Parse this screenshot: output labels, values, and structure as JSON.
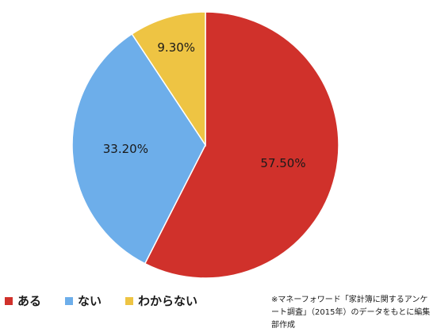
{
  "chart_data": {
    "type": "pie",
    "title": "",
    "slices": [
      {
        "label": "ある",
        "value": 57.5,
        "display": "57.50%",
        "color": "#d0312b"
      },
      {
        "label": "ない",
        "value": 33.2,
        "display": "33.20%",
        "color": "#6daeea"
      },
      {
        "label": "わからない",
        "value": 9.3,
        "display": "9.30%",
        "color": "#eec443"
      }
    ],
    "start_angle_deg": 0,
    "direction": "clockwise",
    "legend_position": "bottom-left"
  },
  "source_note": "※マネーフォワード「家計簿に関するアンケート調査」（2015年）のデータをもとに編集部作成"
}
